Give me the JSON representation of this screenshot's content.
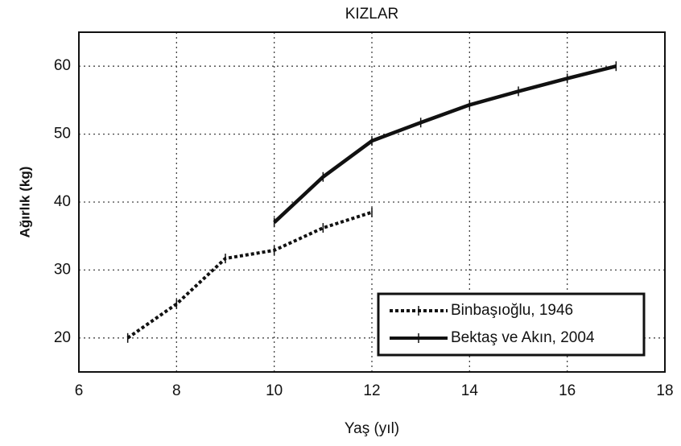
{
  "chart_data": {
    "type": "line",
    "title": "KIZLAR",
    "xlabel": "Yaş (yıl)",
    "ylabel": "Ağırlık (kg)",
    "xlim": [
      6,
      18
    ],
    "xticks": [
      6,
      8,
      10,
      12,
      14,
      16,
      18
    ],
    "ylim": [
      15,
      65
    ],
    "yticks": [
      20,
      30,
      40,
      50,
      60
    ],
    "grid": true,
    "legend": "lower right",
    "series": [
      {
        "name": "Binbaşıoğlu, 1946",
        "color": "#111111",
        "linestyle": "dotted",
        "x": [
          7,
          8,
          9,
          10,
          11,
          12
        ],
        "values": [
          20,
          25,
          31.7,
          32.9,
          36.2,
          38.5
        ]
      },
      {
        "name": "Bektaş ve Akın, 2004",
        "color": "#111111",
        "linestyle": "solid",
        "x": [
          10,
          11,
          12,
          13,
          14,
          15,
          16,
          17
        ],
        "values": [
          37,
          43.7,
          49,
          51.7,
          54.3,
          56.3,
          58.2,
          60
        ]
      }
    ]
  }
}
